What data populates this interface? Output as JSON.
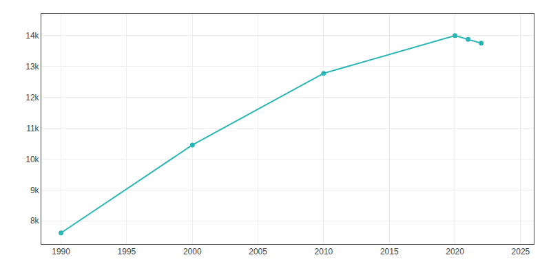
{
  "chart_data": {
    "type": "line",
    "x": [
      1990,
      2000,
      2010,
      2020,
      2021,
      2022
    ],
    "values": [
      7612,
      10453,
      12773,
      13992,
      13869,
      13748
    ],
    "color": "#2ab5b5",
    "marker": "circle",
    "xlim": [
      1988.5,
      2026
    ],
    "ylim": [
      7250,
      14700
    ],
    "xticks": [
      1990,
      1995,
      2000,
      2005,
      2010,
      2015,
      2020,
      2025
    ],
    "yticks": [
      {
        "value": 8000,
        "label": "8k"
      },
      {
        "value": 9000,
        "label": "9k"
      },
      {
        "value": 10000,
        "label": "10k"
      },
      {
        "value": 11000,
        "label": "11k"
      },
      {
        "value": 12000,
        "label": "12k"
      },
      {
        "value": 13000,
        "label": "13k"
      },
      {
        "value": 14000,
        "label": "14k"
      }
    ],
    "grid": true
  }
}
